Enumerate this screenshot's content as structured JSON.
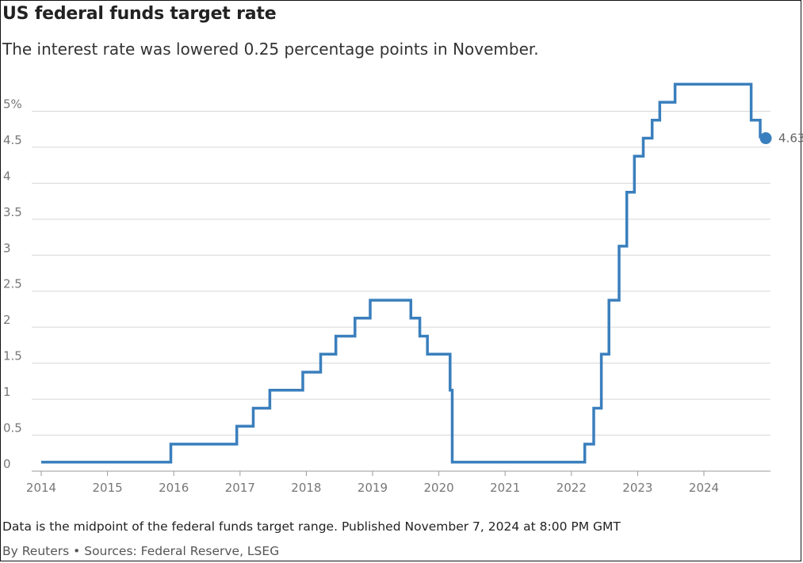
{
  "header": {
    "title": "US federal funds target rate",
    "subtitle": "The interest rate was lowered 0.25 percentage points in November."
  },
  "footer": {
    "note": "Data is the midpoint of the federal funds target range. Published November 7, 2024 at 8:00 PM GMT",
    "source": "By Reuters • Sources: Federal Reserve, LSEG"
  },
  "colors": {
    "line": "#3a7fbd",
    "grid": "#d6d6d6",
    "tick_text": "#777777"
  },
  "chart_data": {
    "type": "line",
    "step": true,
    "title": "US federal funds target rate",
    "subtitle": "The interest rate was lowered 0.25 percentage points in November.",
    "xlabel": "",
    "ylabel": "",
    "xlim": [
      2014.0,
      2025.0
    ],
    "ylim": [
      0,
      5.5
    ],
    "x_ticks": [
      2014,
      2015,
      2016,
      2017,
      2018,
      2019,
      2020,
      2021,
      2022,
      2023,
      2024
    ],
    "x_tick_labels": [
      "2014",
      "2015",
      "2016",
      "2017",
      "2018",
      "2019",
      "2020",
      "2021",
      "2022",
      "2023",
      "2024"
    ],
    "y_ticks": [
      0,
      0.5,
      1,
      1.5,
      2,
      2.5,
      3,
      3.5,
      4,
      4.5,
      5
    ],
    "y_tick_labels": [
      "0",
      "0.5",
      "1",
      "1.5",
      "2",
      "2.5",
      "3",
      "3.5",
      "4",
      "4.5",
      "5%"
    ],
    "grid": true,
    "legend": "none",
    "end_label": "4.63",
    "series": [
      {
        "x": [
          "2014-01-01",
          "2015-12-16",
          "2016-12-14",
          "2017-03-15",
          "2017-06-14",
          "2017-12-13",
          "2018-03-21",
          "2018-06-13",
          "2018-09-26",
          "2018-12-19",
          "2019-07-31",
          "2019-09-18",
          "2019-10-30",
          "2020-03-03",
          "2020-03-15",
          "2022-03-16",
          "2022-05-04",
          "2022-06-15",
          "2022-07-27",
          "2022-09-21",
          "2022-11-02",
          "2022-12-14",
          "2023-02-01",
          "2023-03-22",
          "2023-05-03",
          "2023-07-26",
          "2024-09-18",
          "2024-11-07"
        ],
        "y": [
          0.125,
          0.375,
          0.625,
          0.875,
          1.125,
          1.375,
          1.625,
          1.875,
          2.125,
          2.375,
          2.125,
          1.875,
          1.625,
          1.125,
          0.125,
          0.375,
          0.875,
          1.625,
          2.375,
          3.125,
          3.875,
          4.375,
          4.625,
          4.875,
          5.125,
          5.375,
          4.875,
          4.625
        ]
      }
    ]
  }
}
